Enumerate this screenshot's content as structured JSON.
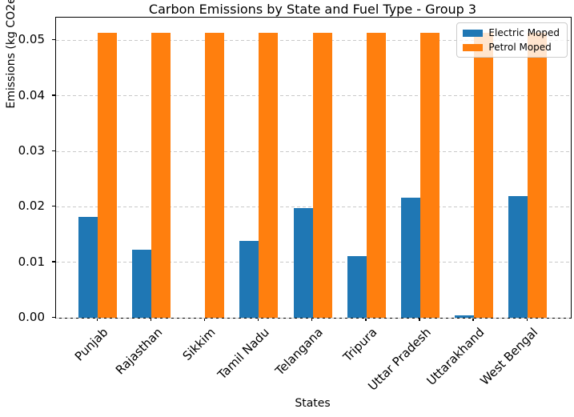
{
  "chart_data": {
    "type": "bar",
    "title": "Carbon Emissions by State and Fuel Type - Group 3",
    "xlabel": "States",
    "ylabel": "Emissions (kg CO2e)",
    "categories": [
      "Punjab",
      "Rajasthan",
      "Sikkim",
      "Tamil Nadu",
      "Telangana",
      "Tripura",
      "Uttar Pradesh",
      "Uttarakhand",
      "West Bengal"
    ],
    "series": [
      {
        "name": "Electric Moped",
        "color": "#1f77b4",
        "values": [
          0.0182,
          0.0122,
          0.0,
          0.0139,
          0.0198,
          0.0111,
          0.0217,
          0.0005,
          0.022
        ]
      },
      {
        "name": "Petrol Moped",
        "color": "#ff7f0e",
        "values": [
          0.0513,
          0.0513,
          0.0513,
          0.0513,
          0.0513,
          0.0513,
          0.0513,
          0.0513,
          0.0513
        ]
      }
    ],
    "ylim": [
      0,
      0.0541
    ],
    "yticks": [
      0,
      0.01,
      0.02,
      0.03,
      0.04,
      0.05
    ],
    "ytick_labels": [
      "0.00",
      "0.01",
      "0.02",
      "0.03",
      "0.04",
      "0.05"
    ],
    "grid": "horizontal-dashed",
    "legend_position": "upper right",
    "bar_orientation": "vertical"
  }
}
